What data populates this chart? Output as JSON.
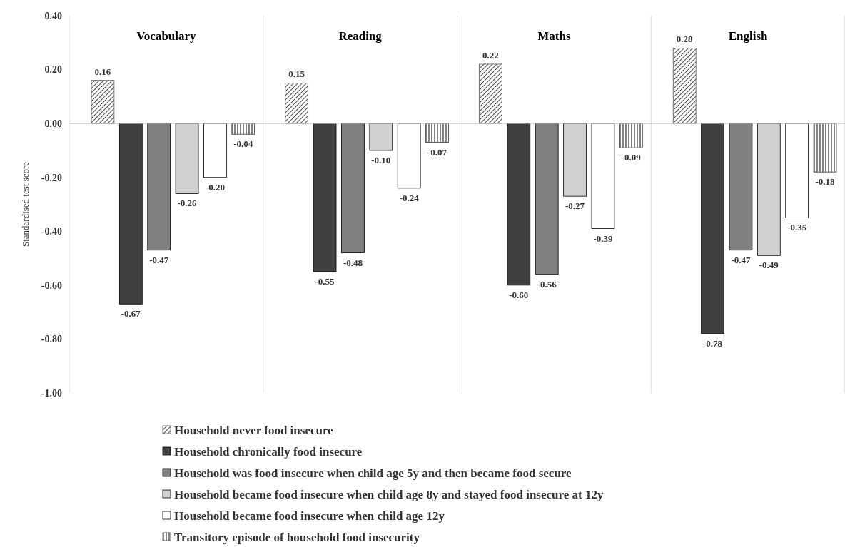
{
  "chart_data": {
    "type": "bar",
    "ylabel": "Standardised test score",
    "categories": [
      "Vocabulary",
      "Reading",
      "Maths",
      "English"
    ],
    "series": [
      {
        "name": "Household never food insecure",
        "color": "#595959",
        "values": [
          0.16,
          0.15,
          0.22,
          0.28
        ],
        "value_labels": [
          "0.16",
          "0.15",
          "0.22",
          "0.28"
        ]
      },
      {
        "name": "Household chronically food insecure",
        "color": "#404040",
        "values": [
          -0.67,
          -0.55,
          -0.6,
          -0.78
        ],
        "value_labels": [
          "-0.67",
          "-0.55",
          "-0.60",
          "-0.78"
        ]
      },
      {
        "name": "Household was food insecure when child age 5y and then became food secure",
        "color": "#808080",
        "values": [
          -0.47,
          -0.48,
          -0.56,
          -0.47
        ],
        "value_labels": [
          "-0.47",
          "-0.48",
          "-0.56",
          "-0.47"
        ]
      },
      {
        "name": "Household became food insecure when child age 8y and stayed food insecure at 12y",
        "color": "#d0d0d0",
        "values": [
          -0.26,
          -0.1,
          -0.27,
          -0.49
        ],
        "value_labels": [
          "-0.26",
          "-0.10",
          "-0.27",
          "-0.49"
        ]
      },
      {
        "name": "Household became food insecure when child age 12y",
        "color": "#ffffff",
        "values": [
          -0.2,
          -0.24,
          -0.39,
          -0.35
        ],
        "value_labels": [
          "-0.20",
          "-0.24",
          "-0.39",
          "-0.35"
        ]
      },
      {
        "name": "Transitory episode of household food insecurity",
        "color": "#404040",
        "values": [
          -0.04,
          -0.07,
          -0.09,
          -0.18
        ],
        "value_labels": [
          "-0.04",
          "-0.07",
          "-0.09",
          "-0.18"
        ]
      }
    ],
    "ylim": [
      -1,
      0.4
    ],
    "yticks": [
      {
        "value": -1,
        "label": "-1.00"
      },
      {
        "value": -0.8,
        "label": "-0.80"
      },
      {
        "value": -0.6,
        "label": "-0.60"
      },
      {
        "value": -0.4,
        "label": "-0.40"
      },
      {
        "value": -0.2,
        "label": "-0.20"
      },
      {
        "value": 0,
        "label": "0.00"
      },
      {
        "value": 0.2,
        "label": "0.20"
      },
      {
        "value": 0.4,
        "label": "0.40"
      }
    ],
    "grid": "x",
    "legend": "bottom"
  }
}
